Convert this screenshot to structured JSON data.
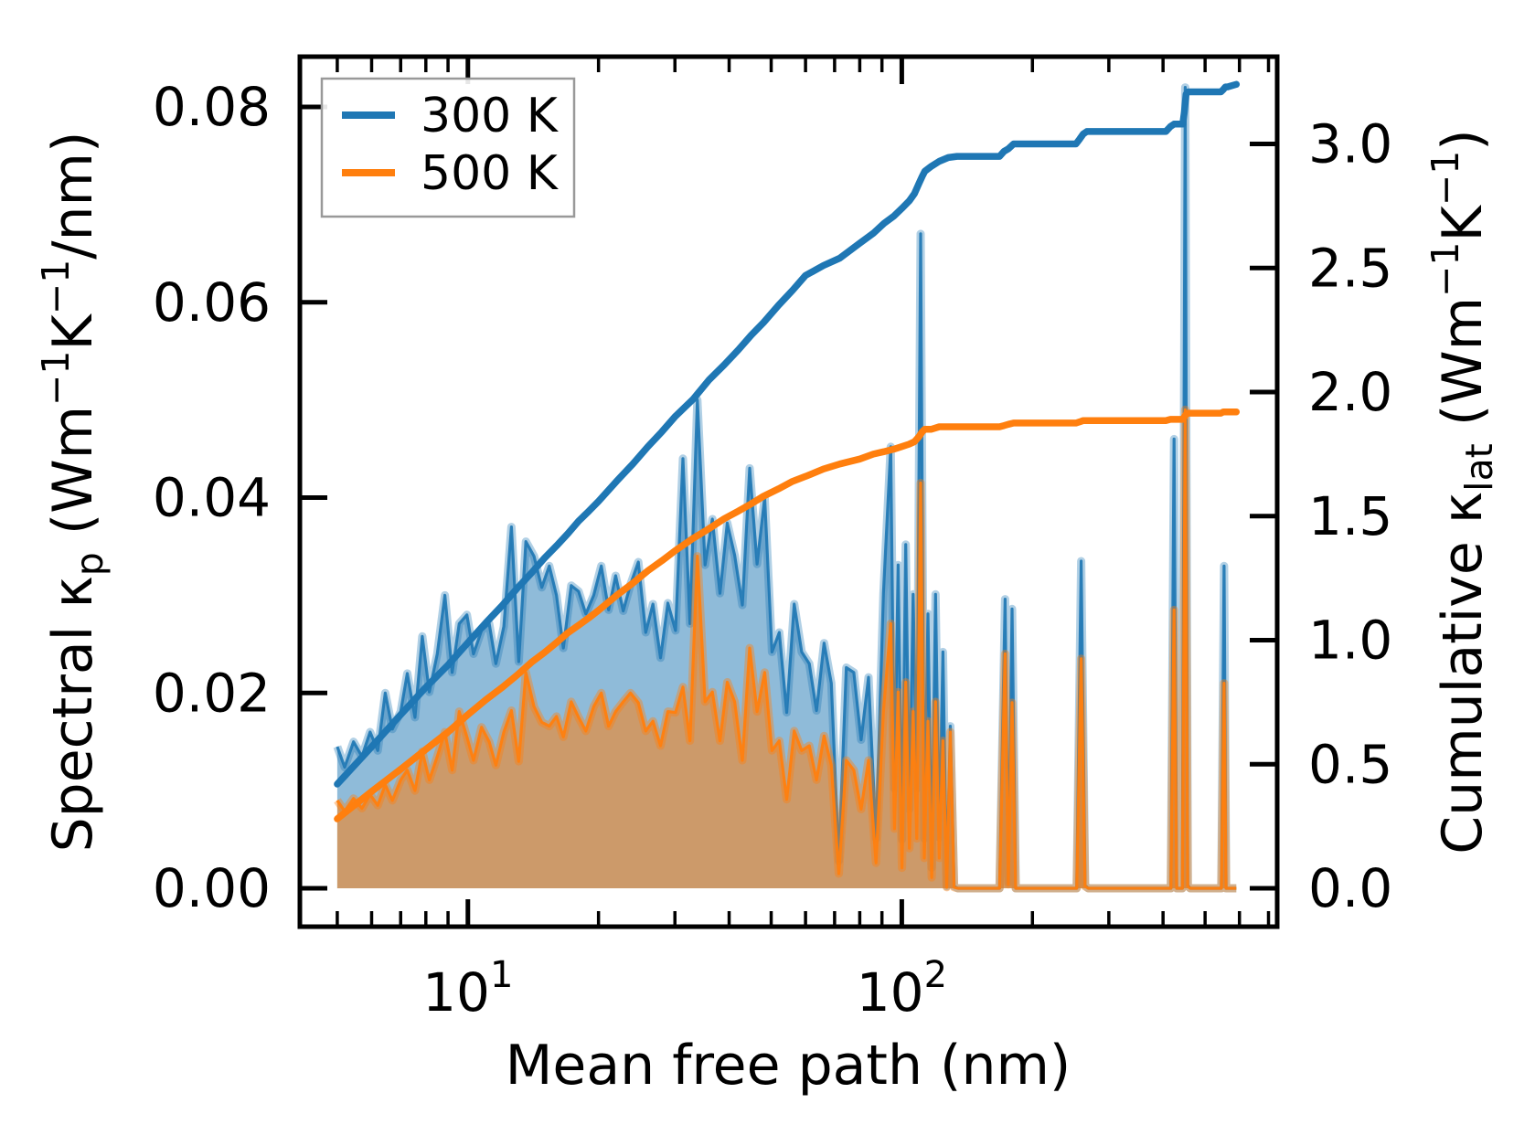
{
  "chart_data": {
    "type": "line+area",
    "title": "",
    "xlabel": "Mean free path (nm)",
    "x_axis": {
      "scale": "log",
      "min": 4.1,
      "max": 733,
      "major_ticks": [
        {
          "value": 10,
          "base": "10",
          "exponent": "1"
        },
        {
          "value": 100,
          "base": "10",
          "exponent": "2"
        }
      ],
      "minor_ticks": [
        5,
        6,
        7,
        8,
        9,
        20,
        30,
        40,
        50,
        60,
        70,
        80,
        90,
        200,
        300,
        400,
        500,
        600,
        700
      ]
    },
    "y_left": {
      "label_parts": [
        {
          "t": "Spectral κ"
        },
        {
          "t": "p",
          "style": "sub"
        },
        {
          "t": " (Wm",
          "style": "n"
        },
        {
          "t": "−1",
          "style": "sup"
        },
        {
          "t": "K",
          "style": "n"
        },
        {
          "t": "−1",
          "style": "sup"
        },
        {
          "t": "/nm)",
          "style": "n"
        }
      ],
      "min": -0.0038,
      "max": 0.0851,
      "ticks": [
        {
          "value": 0.0,
          "label": "0.00"
        },
        {
          "value": 0.02,
          "label": "0.02"
        },
        {
          "value": 0.04,
          "label": "0.04"
        },
        {
          "value": 0.06,
          "label": "0.06"
        },
        {
          "value": 0.08,
          "label": "0.08"
        }
      ]
    },
    "y_right": {
      "label_parts": [
        {
          "t": "Cumulative κ"
        },
        {
          "t": "lat",
          "style": "sub"
        },
        {
          "t": " (Wm",
          "style": "n"
        },
        {
          "t": "−1",
          "style": "sup"
        },
        {
          "t": "K",
          "style": "n"
        },
        {
          "t": "−1",
          "style": "sup"
        },
        {
          "t": ")",
          "style": "n"
        }
      ],
      "min": -0.15,
      "max": 3.35,
      "ticks": [
        {
          "value": 0.0,
          "label": "0.0"
        },
        {
          "value": 0.5,
          "label": "0.5"
        },
        {
          "value": 1.0,
          "label": "1.0"
        },
        {
          "value": 1.5,
          "label": "1.5"
        },
        {
          "value": 2.0,
          "label": "2.0"
        },
        {
          "value": 2.5,
          "label": "2.5"
        },
        {
          "value": 3.0,
          "label": "3.0"
        }
      ]
    },
    "legend": {
      "position": "upper left",
      "entries": [
        {
          "label": "300 K",
          "color": "#1f77b4"
        },
        {
          "label": "500 K",
          "color": "#ff7f0e"
        }
      ]
    },
    "colors": {
      "blue": "#1f77b4",
      "orange": "#ff7f0e",
      "axis": "#000000",
      "legend_border": "#999999"
    },
    "spectral": {
      "x": [
        5.0,
        5.2,
        5.45,
        5.7,
        5.95,
        6.2,
        6.45,
        6.7,
        7.0,
        7.25,
        7.55,
        7.85,
        8.15,
        8.5,
        8.85,
        9.2,
        9.55,
        9.95,
        10.3,
        10.75,
        11.2,
        11.6,
        12.1,
        12.6,
        13.1,
        13.6,
        14.2,
        14.8,
        15.4,
        16.0,
        16.6,
        17.3,
        18.0,
        18.7,
        19.5,
        20.3,
        21.1,
        21.9,
        22.8,
        23.7,
        24.7,
        25.7,
        26.7,
        27.8,
        28.9,
        30.1,
        31.3,
        32.5,
        33.8,
        35.2,
        36.6,
        38.1,
        39.6,
        41.2,
        42.9,
        44.6,
        46.4,
        48.3,
        50.2,
        52.2,
        54.3,
        56.5,
        58.8,
        61.2,
        63.6,
        66.2,
        68.8,
        71.6,
        74.5,
        77.5,
        80.6,
        83.8,
        87.2,
        90.7,
        94.3,
        96.2,
        98.1,
        100.1,
        102.1,
        104.1,
        106.2,
        108.3,
        110.5,
        112.7,
        114.9,
        117.2,
        119.6,
        122.0,
        124.4,
        126.9,
        129.4,
        132.0,
        134.7,
        168.0,
        173.0,
        176.0,
        179.5,
        183.0,
        253.0,
        259.0,
        264.5,
        269.0,
        417.0,
        424.0,
        430.0,
        443.0,
        450.0,
        456.0,
        462.0,
        545.0,
        553.0,
        559.0,
        565.0,
        590.0
      ],
      "k300": [
        0.0145,
        0.0124,
        0.015,
        0.0135,
        0.016,
        0.0141,
        0.02,
        0.0163,
        0.0181,
        0.022,
        0.0175,
        0.0258,
        0.0201,
        0.024,
        0.03,
        0.0221,
        0.0271,
        0.028,
        0.024,
        0.0264,
        0.0271,
        0.023,
        0.0268,
        0.037,
        0.0232,
        0.0355,
        0.034,
        0.0308,
        0.033,
        0.03,
        0.0246,
        0.031,
        0.0304,
        0.0281,
        0.03,
        0.033,
        0.0285,
        0.032,
        0.0284,
        0.0311,
        0.0334,
        0.0262,
        0.0291,
        0.0236,
        0.0292,
        0.0264,
        0.044,
        0.0271,
        0.05,
        0.0331,
        0.0378,
        0.0302,
        0.0374,
        0.0341,
        0.029,
        0.043,
        0.0332,
        0.04,
        0.0242,
        0.0262,
        0.018,
        0.0291,
        0.0242,
        0.023,
        0.0182,
        0.0251,
        0.021,
        0.0028,
        0.0226,
        0.0221,
        0.0152,
        0.0216,
        0.0051,
        0.0302,
        0.0452,
        0.0102,
        0.0331,
        0.005,
        0.0352,
        0.0081,
        0.0301,
        0.0102,
        0.067,
        0.0051,
        0.0281,
        0.0021,
        0.0301,
        0.0052,
        0.0242,
        0.0002,
        0.0166,
        0.0002,
        0.0,
        0.0,
        0.0296,
        0.0006,
        0.0286,
        0.0,
        0.0,
        0.0335,
        0.0003,
        0.0,
        0.0,
        0.046,
        0.0,
        0.0,
        0.082,
        0.0003,
        0.0,
        0.0,
        0.033,
        0.0,
        0.0,
        0.0
      ],
      "k500": [
        0.009,
        0.0079,
        0.0092,
        0.0082,
        0.0096,
        0.0085,
        0.0106,
        0.009,
        0.0111,
        0.0121,
        0.01,
        0.014,
        0.0111,
        0.0135,
        0.016,
        0.0121,
        0.0181,
        0.0155,
        0.0131,
        0.0165,
        0.015,
        0.0126,
        0.016,
        0.0182,
        0.013,
        0.0221,
        0.0186,
        0.017,
        0.0166,
        0.0176,
        0.0155,
        0.0191,
        0.0175,
        0.0161,
        0.0186,
        0.02,
        0.0166,
        0.0181,
        0.0191,
        0.02,
        0.019,
        0.0161,
        0.0171,
        0.0146,
        0.0181,
        0.018,
        0.0206,
        0.0151,
        0.034,
        0.0191,
        0.0201,
        0.0151,
        0.0211,
        0.0191,
        0.0131,
        0.0246,
        0.0181,
        0.0221,
        0.0141,
        0.0151,
        0.0091,
        0.0161,
        0.0141,
        0.0146,
        0.0111,
        0.0156,
        0.0126,
        0.0015,
        0.0131,
        0.0121,
        0.0081,
        0.0131,
        0.0026,
        0.0181,
        0.0271,
        0.0061,
        0.0201,
        0.0021,
        0.0211,
        0.0041,
        0.0181,
        0.0051,
        0.0415,
        0.0031,
        0.0171,
        0.0011,
        0.0191,
        0.0031,
        0.0151,
        0.0001,
        0.016,
        0.0001,
        0.0,
        0.0,
        0.024,
        0.0004,
        0.019,
        0.0,
        0.0,
        0.0235,
        0.0002,
        0.0,
        0.0,
        0.0285,
        0.0,
        0.0,
        0.049,
        0.0002,
        0.0,
        0.0,
        0.021,
        0.0,
        0.0,
        0.0
      ]
    },
    "cumulative": {
      "k300": [
        [
          5,
          0.42
        ],
        [
          6,
          0.57
        ],
        [
          7,
          0.7
        ],
        [
          8,
          0.81
        ],
        [
          9,
          0.9
        ],
        [
          10,
          0.99
        ],
        [
          11,
          1.07
        ],
        [
          12,
          1.14
        ],
        [
          13,
          1.21
        ],
        [
          14,
          1.27
        ],
        [
          15,
          1.33
        ],
        [
          16,
          1.38
        ],
        [
          17,
          1.43
        ],
        [
          18,
          1.48
        ],
        [
          19,
          1.52
        ],
        [
          20,
          1.56
        ],
        [
          22,
          1.64
        ],
        [
          24,
          1.71
        ],
        [
          26,
          1.78
        ],
        [
          28,
          1.84
        ],
        [
          30,
          1.9
        ],
        [
          33,
          1.97
        ],
        [
          36,
          2.05
        ],
        [
          39,
          2.11
        ],
        [
          42,
          2.17
        ],
        [
          45,
          2.23
        ],
        [
          48,
          2.28
        ],
        [
          52,
          2.35
        ],
        [
          56,
          2.41
        ],
        [
          60,
          2.47
        ],
        [
          66,
          2.51
        ],
        [
          72,
          2.54
        ],
        [
          80,
          2.6
        ],
        [
          86,
          2.64
        ],
        [
          91,
          2.68
        ],
        [
          96,
          2.71
        ],
        [
          100,
          2.74
        ],
        [
          104,
          2.77
        ],
        [
          107,
          2.8
        ],
        [
          109.5,
          2.84
        ],
        [
          111.5,
          2.87
        ],
        [
          113,
          2.89
        ],
        [
          117,
          2.91
        ],
        [
          122,
          2.93
        ],
        [
          128,
          2.945
        ],
        [
          134,
          2.95
        ],
        [
          168,
          2.95
        ],
        [
          172,
          2.97
        ],
        [
          176,
          2.98
        ],
        [
          181,
          3.0
        ],
        [
          186,
          3.0
        ],
        [
          252,
          3.0
        ],
        [
          257,
          3.02
        ],
        [
          262,
          3.04
        ],
        [
          267,
          3.05
        ],
        [
          406,
          3.05
        ],
        [
          416,
          3.07
        ],
        [
          424,
          3.08
        ],
        [
          444,
          3.08
        ],
        [
          448,
          3.13
        ],
        [
          452,
          3.2
        ],
        [
          457,
          3.21
        ],
        [
          544,
          3.21
        ],
        [
          551,
          3.22
        ],
        [
          557,
          3.23
        ],
        [
          563,
          3.23
        ],
        [
          590,
          3.24
        ]
      ],
      "k500": [
        [
          5,
          0.28
        ],
        [
          6,
          0.39
        ],
        [
          7,
          0.48
        ],
        [
          8,
          0.56
        ],
        [
          9,
          0.63
        ],
        [
          10,
          0.7
        ],
        [
          11,
          0.76
        ],
        [
          12,
          0.81
        ],
        [
          13,
          0.86
        ],
        [
          14,
          0.91
        ],
        [
          15,
          0.95
        ],
        [
          16,
          0.99
        ],
        [
          17,
          1.03
        ],
        [
          18,
          1.06
        ],
        [
          19,
          1.09
        ],
        [
          20,
          1.12
        ],
        [
          22,
          1.18
        ],
        [
          24,
          1.23
        ],
        [
          26,
          1.28
        ],
        [
          28,
          1.32
        ],
        [
          30,
          1.36
        ],
        [
          33,
          1.41
        ],
        [
          36,
          1.45
        ],
        [
          39,
          1.49
        ],
        [
          42,
          1.52
        ],
        [
          45,
          1.55
        ],
        [
          48,
          1.58
        ],
        [
          52,
          1.61
        ],
        [
          56,
          1.64
        ],
        [
          60,
          1.66
        ],
        [
          66,
          1.69
        ],
        [
          72,
          1.71
        ],
        [
          80,
          1.73
        ],
        [
          86,
          1.75
        ],
        [
          91,
          1.76
        ],
        [
          96,
          1.77
        ],
        [
          100,
          1.78
        ],
        [
          104,
          1.79
        ],
        [
          107,
          1.8
        ],
        [
          109.5,
          1.82
        ],
        [
          111.5,
          1.84
        ],
        [
          113,
          1.85
        ],
        [
          117,
          1.85
        ],
        [
          122,
          1.86
        ],
        [
          128,
          1.86
        ],
        [
          134,
          1.86
        ],
        [
          168,
          1.86
        ],
        [
          172,
          1.865
        ],
        [
          176,
          1.87
        ],
        [
          181,
          1.875
        ],
        [
          186,
          1.875
        ],
        [
          252,
          1.875
        ],
        [
          257,
          1.88
        ],
        [
          262,
          1.885
        ],
        [
          267,
          1.885
        ],
        [
          406,
          1.885
        ],
        [
          416,
          1.89
        ],
        [
          424,
          1.89
        ],
        [
          444,
          1.89
        ],
        [
          448,
          1.9
        ],
        [
          452,
          1.91
        ],
        [
          457,
          1.915
        ],
        [
          544,
          1.915
        ],
        [
          551,
          1.92
        ],
        [
          557,
          1.92
        ],
        [
          563,
          1.92
        ],
        [
          590,
          1.92
        ]
      ]
    }
  }
}
